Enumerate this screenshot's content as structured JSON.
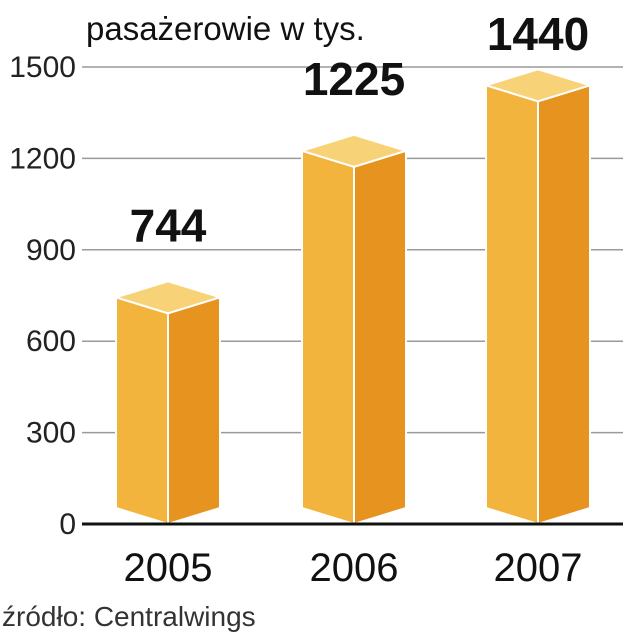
{
  "chart_data": {
    "type": "bar",
    "title": "pasażerowie w tys.",
    "categories": [
      "2005",
      "2006",
      "2007"
    ],
    "values": [
      744,
      1225,
      1440
    ],
    "value_labels": [
      "744",
      "1225",
      "1440"
    ],
    "highlight_index": 2,
    "ylim": [
      0,
      1500
    ],
    "yticks": [
      "0",
      "300",
      "600",
      "900",
      "1200",
      "1500"
    ],
    "grid": true,
    "source": "źródło: Centralwings",
    "colors": {
      "front": "#f2b43c",
      "side": "#e6931f",
      "top": "#f8d277",
      "edge": "#ffffff",
      "label": "#111111",
      "highlight_label": "#c41848"
    }
  }
}
